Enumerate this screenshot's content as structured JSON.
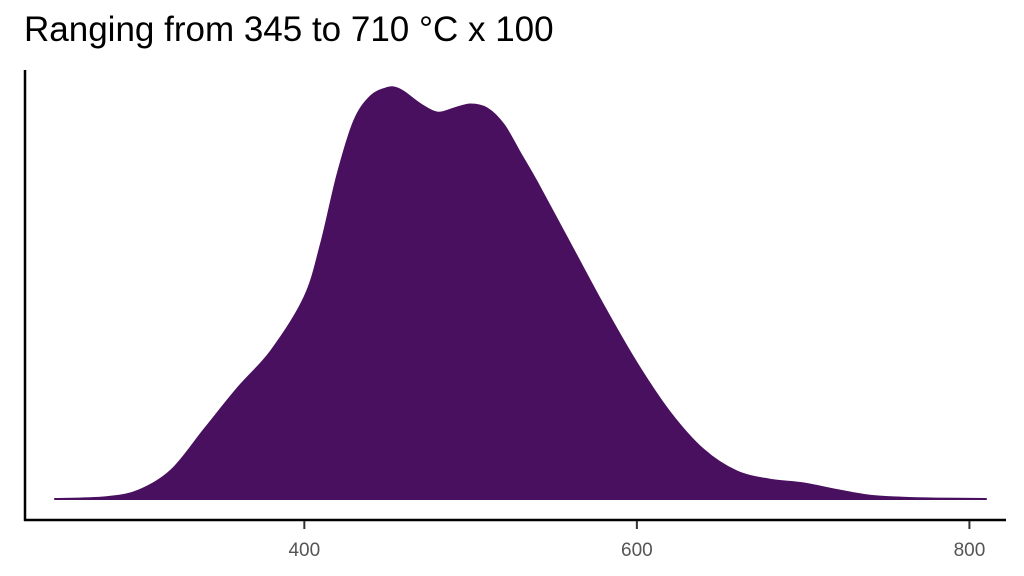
{
  "chart_data": {
    "type": "area",
    "title": "Ranging from 345 to 710 °C x 100",
    "xlabel": "",
    "ylabel": "",
    "xlim": [
      232,
      822
    ],
    "ylim": [
      0,
      1
    ],
    "x_ticks": [
      400,
      600,
      800
    ],
    "x_tick_labels": [
      "400",
      "600",
      "800"
    ],
    "y_tick_labels": [],
    "grid": false,
    "legend": "none",
    "fill_color": "#48105e",
    "series": [
      {
        "x": [
          250,
          280,
          300,
          320,
          340,
          360,
          380,
          400,
          410,
          420,
          430,
          440,
          450,
          455,
          460,
          470,
          480,
          490,
          500,
          510,
          520,
          530,
          540,
          560,
          580,
          600,
          620,
          640,
          660,
          680,
          700,
          720,
          740,
          760,
          780,
          810
        ],
        "y": [
          0.0,
          0.004,
          0.02,
          0.07,
          0.17,
          0.27,
          0.36,
          0.49,
          0.62,
          0.79,
          0.92,
          0.98,
          1.0,
          1.0,
          0.99,
          0.96,
          0.94,
          0.95,
          0.96,
          0.95,
          0.91,
          0.84,
          0.77,
          0.62,
          0.47,
          0.33,
          0.21,
          0.12,
          0.067,
          0.047,
          0.038,
          0.022,
          0.008,
          0.003,
          0.001,
          0.0
        ]
      }
    ]
  }
}
